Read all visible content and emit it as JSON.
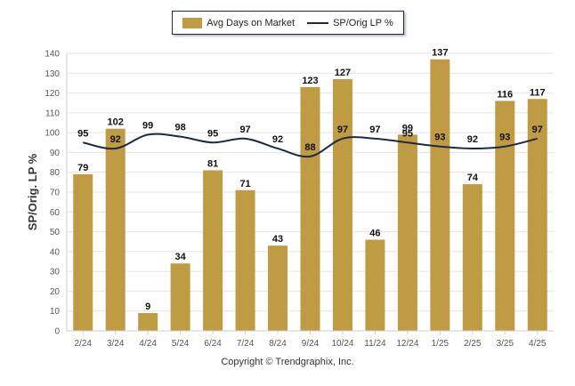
{
  "chart_data": {
    "type": "bar",
    "categories": [
      "2/24",
      "3/24",
      "4/24",
      "5/24",
      "6/24",
      "7/24",
      "8/24",
      "9/24",
      "10/24",
      "11/24",
      "12/24",
      "1/25",
      "2/25",
      "3/25",
      "4/25"
    ],
    "series": [
      {
        "name": "Avg Days on Market",
        "type": "bar",
        "color": "#bf9b43",
        "values": [
          79,
          102,
          9,
          34,
          81,
          71,
          43,
          123,
          127,
          46,
          99,
          137,
          74,
          116,
          117
        ]
      },
      {
        "name": "SP/Orig LP %",
        "type": "line",
        "color": "#1c2a48",
        "values": [
          95,
          92,
          99,
          98,
          95,
          97,
          92,
          88,
          97,
          97,
          95,
          93,
          92,
          93,
          97
        ]
      }
    ],
    "ylabel": "SP/Orig. LP %",
    "xlabel": "",
    "ylim": [
      0,
      140
    ],
    "yticks": [
      0,
      10,
      20,
      30,
      40,
      50,
      60,
      70,
      80,
      90,
      100,
      110,
      120,
      130,
      140
    ],
    "grid": true,
    "legend_position": "top-center"
  },
  "footer": {
    "copyright": "Copyright © Trendgraphix, Inc."
  }
}
